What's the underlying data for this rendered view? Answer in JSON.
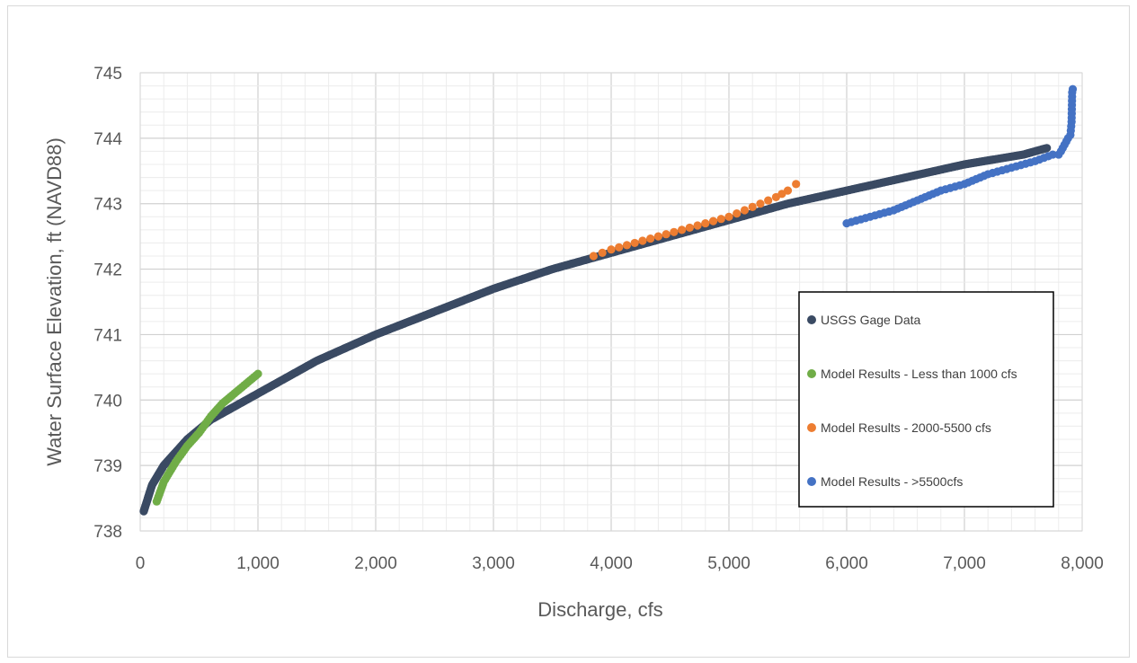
{
  "chart_data": {
    "type": "scatter",
    "title": "",
    "xlabel": "Discharge, cfs",
    "ylabel": "Water Surface Elevation, ft (NAVD88)",
    "xlim": [
      0,
      8000
    ],
    "ylim": [
      738,
      745
    ],
    "x_ticks": [
      "0",
      "1,000",
      "2,000",
      "3,000",
      "4,000",
      "5,000",
      "6,000",
      "7,000",
      "8,000"
    ],
    "y_ticks": [
      "738",
      "739",
      "740",
      "741",
      "742",
      "743",
      "744",
      "745"
    ],
    "grid": "major and minor",
    "legend_position": "right",
    "series": [
      {
        "name": "USGS Gage Data",
        "color": "#3a4a63",
        "x": [
          30,
          100,
          200,
          400,
          600,
          800,
          1000,
          1500,
          2000,
          2500,
          3000,
          3500,
          3900,
          4500,
          5000,
          5500,
          6000,
          6500,
          7000,
          7500,
          7700
        ],
        "y": [
          738.3,
          738.7,
          739.0,
          739.4,
          739.7,
          739.9,
          740.1,
          740.6,
          741.0,
          741.35,
          741.7,
          742.0,
          742.2,
          742.5,
          742.75,
          743.0,
          743.2,
          743.4,
          743.6,
          743.75,
          743.85
        ]
      },
      {
        "name": "Model Results - Less than 1000 cfs",
        "color": "#70ad47",
        "x": [
          140,
          200,
          300,
          400,
          500,
          600,
          700,
          800,
          900,
          1000
        ],
        "y": [
          738.45,
          738.75,
          739.05,
          739.3,
          739.5,
          739.75,
          739.95,
          740.1,
          740.25,
          740.4
        ]
      },
      {
        "name": "Model Results - 2000-5500 cfs",
        "color": "#ed7d31",
        "x": [
          3850,
          4000,
          4200,
          4400,
          4600,
          4800,
          5000,
          5200,
          5400,
          5500,
          5570
        ],
        "y": [
          742.2,
          742.3,
          742.4,
          742.5,
          742.6,
          742.7,
          742.8,
          742.95,
          743.1,
          743.2,
          743.3
        ]
      },
      {
        "name": "Model Results - >5500cfs",
        "color": "#4472c4",
        "x": [
          6000,
          6200,
          6400,
          6600,
          6800,
          7000,
          7200,
          7400,
          7600,
          7750,
          7800,
          7820,
          7850,
          7880,
          7900,
          7910,
          7915,
          7920
        ],
        "y": [
          742.7,
          742.8,
          742.9,
          743.05,
          743.2,
          743.3,
          743.45,
          743.55,
          743.65,
          743.75,
          743.75,
          743.8,
          743.9,
          744.0,
          744.05,
          744.25,
          744.7,
          744.75
        ]
      }
    ]
  }
}
